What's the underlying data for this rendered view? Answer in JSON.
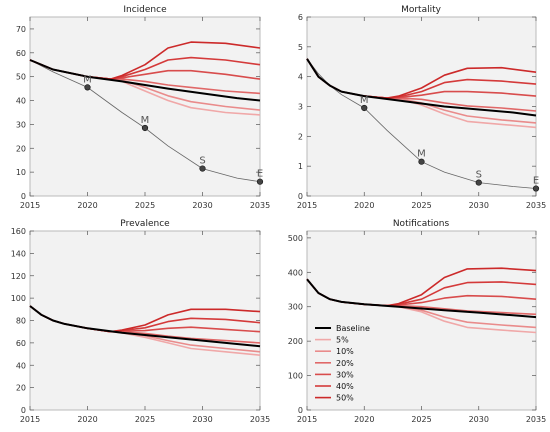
{
  "colors": {
    "panel_background": "#f2f2f2",
    "baseline": "#000000",
    "target_curve": "#666666",
    "scenarios": [
      "#f0a8a8",
      "#e98b8b",
      "#e06868",
      "#d84c4c",
      "#d43a3a",
      "#cc2a2a"
    ]
  },
  "chart_data": [
    {
      "type": "line",
      "title": "Incidence",
      "xlim": [
        2015,
        2035
      ],
      "ylim": [
        0,
        75
      ],
      "xticks": [
        2015,
        2020,
        2025,
        2030,
        2035
      ],
      "yticks": [
        0,
        10,
        20,
        30,
        40,
        50,
        60,
        70
      ],
      "baseline": {
        "name": "Baseline",
        "x": [
          2015,
          2017,
          2020,
          2023,
          2025,
          2027,
          2030,
          2033,
          2035
        ],
        "y": [
          57,
          53,
          50,
          48,
          46.5,
          45,
          43,
          41,
          40
        ]
      },
      "series": [
        {
          "name": "5%",
          "x": [
            2015,
            2017,
            2020,
            2022,
            2023,
            2025,
            2027,
            2029,
            2032,
            2035
          ],
          "y": [
            57,
            53,
            50,
            49,
            48,
            44,
            40,
            37,
            35,
            34
          ]
        },
        {
          "name": "10%",
          "x": [
            2015,
            2017,
            2020,
            2022,
            2023,
            2025,
            2027,
            2029,
            2032,
            2035
          ],
          "y": [
            57,
            53,
            50,
            49,
            48.5,
            45.5,
            42,
            39.5,
            37.5,
            36
          ]
        },
        {
          "name": "20%",
          "x": [
            2015,
            2017,
            2020,
            2022,
            2023,
            2025,
            2027,
            2029,
            2032,
            2035
          ],
          "y": [
            57,
            53,
            50,
            49,
            49,
            48,
            46.5,
            45.5,
            44,
            43
          ]
        },
        {
          "name": "30%",
          "x": [
            2015,
            2017,
            2020,
            2022,
            2023,
            2025,
            2027,
            2029,
            2032,
            2035
          ],
          "y": [
            57,
            53,
            50,
            49,
            49.5,
            51,
            52.5,
            52.5,
            51,
            49
          ]
        },
        {
          "name": "40%",
          "x": [
            2015,
            2017,
            2020,
            2022,
            2023,
            2025,
            2027,
            2029,
            2032,
            2035
          ],
          "y": [
            57,
            53,
            50,
            49,
            50,
            53,
            57,
            58,
            57,
            55
          ]
        },
        {
          "name": "50%",
          "x": [
            2015,
            2017,
            2020,
            2022,
            2023,
            2025,
            2027,
            2029,
            2032,
            2035
          ],
          "y": [
            57,
            53,
            50,
            49,
            50.5,
            55,
            62,
            64.5,
            64,
            62
          ]
        }
      ],
      "targets": {
        "curve": {
          "x": [
            2015,
            2017,
            2020,
            2023,
            2025,
            2027,
            2030,
            2033,
            2035
          ],
          "y": [
            57,
            52,
            45.5,
            35,
            28.5,
            21,
            11.5,
            7.5,
            6
          ]
        },
        "points": [
          {
            "label": "M",
            "x": 2020,
            "y": 45.5
          },
          {
            "label": "M",
            "x": 2025,
            "y": 28.5
          },
          {
            "label": "S",
            "x": 2030,
            "y": 11.5
          },
          {
            "label": "E",
            "x": 2035,
            "y": 6
          }
        ]
      }
    },
    {
      "type": "line",
      "title": "Mortality",
      "xlim": [
        2015,
        2035
      ],
      "ylim": [
        0,
        6
      ],
      "xticks": [
        2015,
        2020,
        2025,
        2030,
        2035
      ],
      "yticks": [
        0,
        1,
        2,
        3,
        4,
        5,
        6
      ],
      "baseline": {
        "name": "Baseline",
        "x": [
          2015,
          2016,
          2017,
          2018,
          2020,
          2023,
          2025,
          2027,
          2030,
          2033,
          2035
        ],
        "y": [
          4.6,
          4.0,
          3.7,
          3.5,
          3.35,
          3.2,
          3.1,
          3.0,
          2.9,
          2.8,
          2.7
        ]
      },
      "series": [
        {
          "name": "5%",
          "x": [
            2015,
            2016,
            2017,
            2018,
            2020,
            2022,
            2023,
            2025,
            2027,
            2029,
            2032,
            2035
          ],
          "y": [
            4.6,
            4.0,
            3.7,
            3.5,
            3.35,
            3.28,
            3.25,
            3.05,
            2.75,
            2.5,
            2.4,
            2.3
          ]
        },
        {
          "name": "10%",
          "x": [
            2015,
            2016,
            2017,
            2018,
            2020,
            2022,
            2023,
            2025,
            2027,
            2029,
            2032,
            2035
          ],
          "y": [
            4.6,
            4.0,
            3.7,
            3.5,
            3.35,
            3.28,
            3.26,
            3.12,
            2.88,
            2.68,
            2.55,
            2.45
          ]
        },
        {
          "name": "20%",
          "x": [
            2015,
            2016,
            2017,
            2018,
            2020,
            2022,
            2023,
            2025,
            2027,
            2029,
            2032,
            2035
          ],
          "y": [
            4.6,
            4.0,
            3.7,
            3.5,
            3.35,
            3.28,
            3.28,
            3.24,
            3.12,
            3.02,
            2.95,
            2.85
          ]
        },
        {
          "name": "30%",
          "x": [
            2015,
            2016,
            2017,
            2018,
            2020,
            2022,
            2023,
            2025,
            2027,
            2029,
            2032,
            2035
          ],
          "y": [
            4.6,
            4.0,
            3.7,
            3.5,
            3.35,
            3.28,
            3.3,
            3.38,
            3.5,
            3.5,
            3.45,
            3.35
          ]
        },
        {
          "name": "40%",
          "x": [
            2015,
            2016,
            2017,
            2018,
            2020,
            2022,
            2023,
            2025,
            2027,
            2029,
            2032,
            2035
          ],
          "y": [
            4.6,
            4.0,
            3.7,
            3.5,
            3.35,
            3.28,
            3.32,
            3.5,
            3.8,
            3.9,
            3.85,
            3.75
          ]
        },
        {
          "name": "50%",
          "x": [
            2015,
            2016,
            2017,
            2018,
            2020,
            2022,
            2023,
            2025,
            2027,
            2029,
            2032,
            2035
          ],
          "y": [
            4.6,
            4.0,
            3.7,
            3.5,
            3.35,
            3.28,
            3.35,
            3.62,
            4.05,
            4.28,
            4.3,
            4.15
          ]
        }
      ],
      "targets": {
        "curve": {
          "x": [
            2015,
            2016,
            2017,
            2018,
            2020,
            2022,
            2025,
            2027,
            2030,
            2033,
            2035
          ],
          "y": [
            4.6,
            4.1,
            3.7,
            3.4,
            2.95,
            2.2,
            1.15,
            0.8,
            0.45,
            0.32,
            0.25
          ]
        },
        "points": [
          {
            "label": "M",
            "x": 2020,
            "y": 2.95
          },
          {
            "label": "M",
            "x": 2025,
            "y": 1.15
          },
          {
            "label": "S",
            "x": 2030,
            "y": 0.45
          },
          {
            "label": "E",
            "x": 2035,
            "y": 0.25
          }
        ]
      }
    },
    {
      "type": "line",
      "title": "Prevalence",
      "xlim": [
        2015,
        2035
      ],
      "ylim": [
        0,
        160
      ],
      "xticks": [
        2015,
        2020,
        2025,
        2030,
        2035
      ],
      "yticks": [
        0,
        20,
        40,
        60,
        80,
        100,
        120,
        140,
        160
      ],
      "baseline": {
        "name": "Baseline",
        "x": [
          2015,
          2016,
          2017,
          2018,
          2020,
          2023,
          2025,
          2027,
          2030,
          2033,
          2035
        ],
        "y": [
          93,
          85,
          80,
          77,
          73,
          69,
          67,
          65,
          62,
          59,
          57
        ]
      },
      "series": [
        {
          "name": "5%",
          "x": [
            2015,
            2016,
            2017,
            2018,
            2020,
            2022,
            2023,
            2025,
            2027,
            2029,
            2032,
            2035
          ],
          "y": [
            93,
            85,
            80,
            77,
            73,
            70,
            69,
            65,
            60,
            55,
            52,
            49
          ]
        },
        {
          "name": "10%",
          "x": [
            2015,
            2016,
            2017,
            2018,
            2020,
            2022,
            2023,
            2025,
            2027,
            2029,
            2032,
            2035
          ],
          "y": [
            93,
            85,
            80,
            77,
            73,
            70,
            69.5,
            66.5,
            62,
            58,
            55,
            52
          ]
        },
        {
          "name": "20%",
          "x": [
            2015,
            2016,
            2017,
            2018,
            2020,
            2022,
            2023,
            2025,
            2027,
            2029,
            2032,
            2035
          ],
          "y": [
            93,
            85,
            80,
            77,
            73,
            70,
            70,
            68.5,
            66,
            64,
            62,
            60
          ]
        },
        {
          "name": "30%",
          "x": [
            2015,
            2016,
            2017,
            2018,
            2020,
            2022,
            2023,
            2025,
            2027,
            2029,
            2032,
            2035
          ],
          "y": [
            93,
            85,
            80,
            77,
            73,
            70,
            70.5,
            71,
            73,
            74,
            72,
            70
          ]
        },
        {
          "name": "40%",
          "x": [
            2015,
            2016,
            2017,
            2018,
            2020,
            2022,
            2023,
            2025,
            2027,
            2029,
            2032,
            2035
          ],
          "y": [
            93,
            85,
            80,
            77,
            73,
            70,
            71,
            73.5,
            79,
            82,
            81,
            78
          ]
        },
        {
          "name": "50%",
          "x": [
            2015,
            2016,
            2017,
            2018,
            2020,
            2022,
            2023,
            2025,
            2027,
            2029,
            2032,
            2035
          ],
          "y": [
            93,
            85,
            80,
            77,
            73,
            70,
            71.5,
            76,
            85,
            90,
            90,
            88
          ]
        }
      ]
    },
    {
      "type": "line",
      "title": "Notifications",
      "xlim": [
        2015,
        2035
      ],
      "ylim": [
        0,
        520
      ],
      "xticks": [
        2015,
        2020,
        2025,
        2030,
        2035
      ],
      "yticks": [
        0,
        100,
        200,
        300,
        400,
        500
      ],
      "legend": "center-left",
      "baseline": {
        "name": "Baseline",
        "x": [
          2015,
          2016,
          2017,
          2018,
          2020,
          2023,
          2025,
          2027,
          2030,
          2033,
          2035
        ],
        "y": [
          380,
          340,
          322,
          314,
          307,
          300,
          295,
          290,
          283,
          275,
          270
        ]
      },
      "series": [
        {
          "name": "5%",
          "x": [
            2015,
            2016,
            2017,
            2018,
            2020,
            2022,
            2023,
            2025,
            2027,
            2029,
            2032,
            2035
          ],
          "y": [
            380,
            340,
            322,
            314,
            307,
            303,
            300,
            285,
            258,
            240,
            232,
            225
          ]
        },
        {
          "name": "10%",
          "x": [
            2015,
            2016,
            2017,
            2018,
            2020,
            2022,
            2023,
            2025,
            2027,
            2029,
            2032,
            2035
          ],
          "y": [
            380,
            340,
            322,
            314,
            307,
            303,
            301,
            290,
            270,
            255,
            247,
            240
          ]
        },
        {
          "name": "20%",
          "x": [
            2015,
            2016,
            2017,
            2018,
            2020,
            2022,
            2023,
            2025,
            2027,
            2029,
            2032,
            2035
          ],
          "y": [
            380,
            340,
            322,
            314,
            307,
            303,
            303,
            300,
            294,
            288,
            283,
            278
          ]
        },
        {
          "name": "30%",
          "x": [
            2015,
            2016,
            2017,
            2018,
            2020,
            2022,
            2023,
            2025,
            2027,
            2029,
            2032,
            2035
          ],
          "y": [
            380,
            340,
            322,
            314,
            307,
            303,
            305,
            312,
            325,
            332,
            330,
            322
          ]
        },
        {
          "name": "40%",
          "x": [
            2015,
            2016,
            2017,
            2018,
            2020,
            2022,
            2023,
            2025,
            2027,
            2029,
            2032,
            2035
          ],
          "y": [
            380,
            340,
            322,
            314,
            307,
            303,
            307,
            322,
            355,
            370,
            372,
            365
          ]
        },
        {
          "name": "50%",
          "x": [
            2015,
            2016,
            2017,
            2018,
            2020,
            2022,
            2023,
            2025,
            2027,
            2029,
            2032,
            2035
          ],
          "y": [
            380,
            340,
            322,
            314,
            307,
            303,
            309,
            335,
            385,
            410,
            412,
            405
          ]
        }
      ]
    }
  ]
}
